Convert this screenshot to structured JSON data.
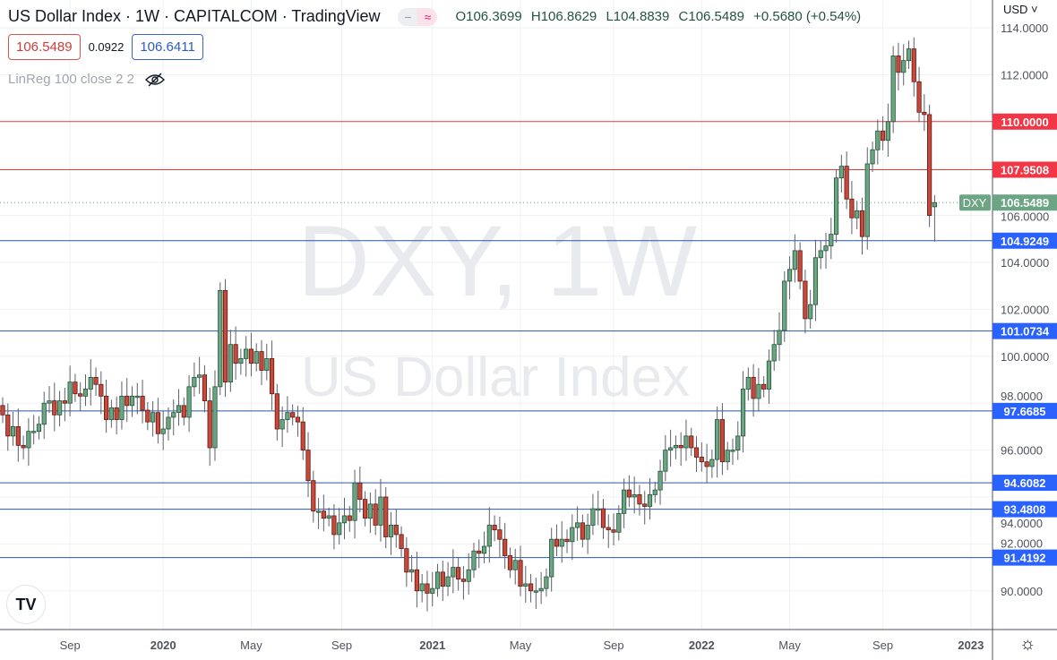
{
  "header": {
    "title": "US Dollar Index · 1W · CAPITALCOM · TradingView",
    "badge_minus": "−",
    "badge_wave": "≈",
    "open": "O106.3699",
    "high": "H106.8629",
    "low": "L104.8839",
    "close": "C106.5489",
    "change": "+0.5680 (+0.54%)",
    "sell_price": "106.5489",
    "spread": "0.0922",
    "buy_price": "106.6411",
    "indicator": "LinReg 100 close 2 2",
    "indicator_icon": "eye-off-icon",
    "currency": "USD ˅"
  },
  "watermark": {
    "symbol": "DXY, 1W",
    "name": "US Dollar Index"
  },
  "footer": {
    "logo": "TV",
    "settings_icon": "gear-icon"
  },
  "colors": {
    "up": "#6ba583",
    "down": "#c8483a",
    "up_border": "#225437",
    "down_border": "#5e1a14",
    "red_line": "#e23b3b",
    "blue_line": "#2a56a8",
    "blue_label": "#2962ff",
    "red_label": "#f23645"
  },
  "chart_data": {
    "type": "candlestick",
    "title": "US Dollar Index · 1W · CAPITALCOM",
    "interval": "1W",
    "first_week": "2019-05-31",
    "ylim": [
      88.6,
      115.1
    ],
    "y_ticks": [
      "90.0000",
      "92.0000",
      "94.0000",
      "96.0000",
      "98.0000",
      "100.0000",
      "102.0000",
      "104.0000",
      "106.0000",
      "112.0000",
      "114.0000"
    ],
    "x_ticks": [
      {
        "label": "Sep",
        "week": 13
      },
      {
        "label": "2020",
        "week": 31,
        "bold": true
      },
      {
        "label": "May",
        "week": 48
      },
      {
        "label": "Sep",
        "week": 65.5
      },
      {
        "label": "2021",
        "week": 83,
        "bold": true
      },
      {
        "label": "May",
        "week": 100
      },
      {
        "label": "Sep",
        "week": 118
      },
      {
        "label": "2022",
        "week": 135,
        "bold": true
      },
      {
        "label": "May",
        "week": 152
      },
      {
        "label": "Sep",
        "week": 170
      },
      {
        "label": "2023",
        "week": 187,
        "bold": true
      }
    ],
    "closes": [
      97.5,
      96.6,
      97.0,
      96.2,
      96.1,
      96.8,
      96.8,
      97.1,
      98.0,
      98.1,
      97.5,
      98.1,
      98.0,
      98.9,
      98.4,
      98.3,
      98.6,
      99.1,
      98.8,
      98.3,
      97.3,
      97.8,
      97.3,
      98.3,
      97.9,
      98.3,
      98.3,
      97.7,
      97.2,
      97.6,
      96.7,
      96.9,
      97.4,
      97.6,
      97.9,
      97.4,
      98.7,
      99.1,
      99.2,
      98.1,
      96.1,
      98.7,
      102.8,
      98.9,
      100.5,
      99.7,
      99.9,
      100.3,
      99.7,
      100.2,
      99.4,
      99.9,
      98.4,
      96.9,
      97.3,
      97.6,
      97.4,
      97.2,
      96.0,
      94.7,
      93.4,
      93.4,
      93.1,
      93.2,
      92.4,
      92.9,
      93.2,
      93.0,
      94.6,
      93.9,
      93.1,
      93.7,
      92.8,
      94.0,
      92.3,
      92.8,
      92.4,
      91.8,
      90.8,
      90.9,
      90.0,
      90.3,
      89.9,
      90.1,
      90.8,
      90.2,
      90.6,
      91.0,
      90.5,
      90.4,
      90.9,
      91.7,
      91.6,
      91.9,
      92.8,
      92.6,
      92.2,
      91.5,
      90.9,
      91.3,
      90.2,
      90.3,
      90.0,
      90.0,
      90.1,
      90.6,
      92.2,
      91.9,
      92.2,
      92.1,
      92.7,
      92.9,
      92.2,
      92.8,
      93.5,
      93.5,
      92.7,
      92.6,
      92.5,
      93.3,
      94.3,
      94.0,
      94.1,
      93.7,
      93.6,
      94.1,
      94.3,
      95.1,
      96.0,
      96.1,
      96.2,
      96.1,
      96.6,
      96.1,
      95.7,
      95.5,
      95.3,
      95.6,
      97.3,
      95.5,
      96.0,
      96.0,
      96.6,
      98.6,
      99.1,
      98.2,
      98.8,
      98.6,
      99.8,
      100.5,
      101.1,
      103.2,
      103.7,
      104.5,
      103.2,
      101.6,
      102.2,
      104.2,
      104.5,
      104.7,
      105.2,
      107.6,
      108.1,
      106.7,
      105.9,
      106.2,
      105.1,
      108.2,
      108.8,
      109.6,
      109.2,
      110.0,
      112.8,
      112.1,
      112.6,
      113.1,
      111.7,
      110.4,
      110.3,
      106.0,
      106.5489
    ],
    "last_candle": {
      "open": 106.3699,
      "high": 106.8629,
      "low": 104.8839,
      "close": 106.5489
    },
    "horizontal_levels": [
      {
        "value": 110.0,
        "label": "110.0000",
        "color": "red"
      },
      {
        "value": 107.9508,
        "label": "107.9508",
        "color": "red"
      },
      {
        "value": 104.9249,
        "label": "104.9249",
        "color": "blue"
      },
      {
        "value": 101.0734,
        "label": "101.0734",
        "color": "blue"
      },
      {
        "value": 97.6685,
        "label": "97.6685",
        "color": "blue"
      },
      {
        "value": 94.6082,
        "label": "94.6082",
        "color": "blue"
      },
      {
        "value": 93.4808,
        "label": "93.4808",
        "color": "blue"
      },
      {
        "value": 91.4192,
        "label": "91.4192",
        "color": "blue"
      }
    ],
    "last_price": {
      "symbol": "DXY",
      "value": 106.5489,
      "label": "106.5489"
    }
  }
}
